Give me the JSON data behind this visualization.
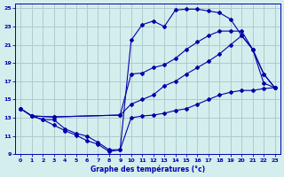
{
  "title": "Graphe des températures (°c)",
  "bg_color": "#d4eeee",
  "grid_color": "#aacccc",
  "line_color": "#0000aa",
  "xlim": [
    -0.5,
    23.5
  ],
  "ylim": [
    9,
    25.5
  ],
  "xticks": [
    0,
    1,
    2,
    3,
    4,
    5,
    6,
    7,
    8,
    9,
    10,
    11,
    12,
    13,
    14,
    15,
    16,
    17,
    18,
    19,
    20,
    21,
    22,
    23
  ],
  "yticks": [
    9,
    11,
    13,
    15,
    17,
    19,
    21,
    23,
    25
  ],
  "line1_x": [
    0,
    1,
    2,
    3,
    4,
    5,
    6,
    7,
    8,
    9,
    10,
    11,
    12,
    13,
    14,
    15,
    16,
    17,
    18,
    19,
    20,
    21,
    22,
    23
  ],
  "line1_y": [
    14.0,
    13.2,
    12.8,
    12.2,
    11.6,
    11.1,
    10.5,
    10.1,
    9.3,
    9.5,
    21.5,
    23.2,
    23.6,
    23.0,
    24.8,
    24.9,
    24.9,
    24.7,
    24.5,
    23.8,
    22.0,
    20.5,
    17.8,
    16.3
  ],
  "line2_x": [
    0,
    1,
    3,
    9,
    10,
    11,
    12,
    13,
    14,
    15,
    16,
    17,
    18,
    19,
    20,
    21,
    22,
    23
  ],
  "line2_y": [
    14.0,
    13.2,
    13.1,
    13.3,
    17.8,
    17.9,
    18.5,
    18.8,
    19.5,
    20.5,
    21.3,
    22.0,
    22.5,
    22.5,
    22.5,
    20.5,
    17.8,
    16.3
  ],
  "line3_x": [
    0,
    1,
    3,
    9,
    10,
    11,
    12,
    13,
    14,
    15,
    16,
    17,
    18,
    19,
    20,
    21,
    22,
    23
  ],
  "line3_y": [
    14.0,
    13.2,
    13.1,
    13.3,
    14.5,
    15.0,
    15.5,
    16.5,
    17.0,
    17.8,
    18.5,
    19.2,
    20.0,
    21.0,
    22.0,
    20.5,
    16.8,
    16.3
  ],
  "line4_x": [
    0,
    1,
    2,
    3,
    4,
    5,
    6,
    7,
    8,
    9,
    10,
    11,
    12,
    13,
    14,
    15,
    16,
    17,
    18,
    19,
    20,
    21,
    22,
    23
  ],
  "line4_y": [
    14.0,
    13.2,
    12.8,
    12.8,
    11.8,
    11.3,
    11.0,
    10.3,
    9.5,
    9.5,
    13.0,
    13.2,
    13.3,
    13.5,
    13.8,
    14.0,
    14.5,
    15.0,
    15.5,
    15.8,
    16.0,
    16.0,
    16.2,
    16.3
  ]
}
